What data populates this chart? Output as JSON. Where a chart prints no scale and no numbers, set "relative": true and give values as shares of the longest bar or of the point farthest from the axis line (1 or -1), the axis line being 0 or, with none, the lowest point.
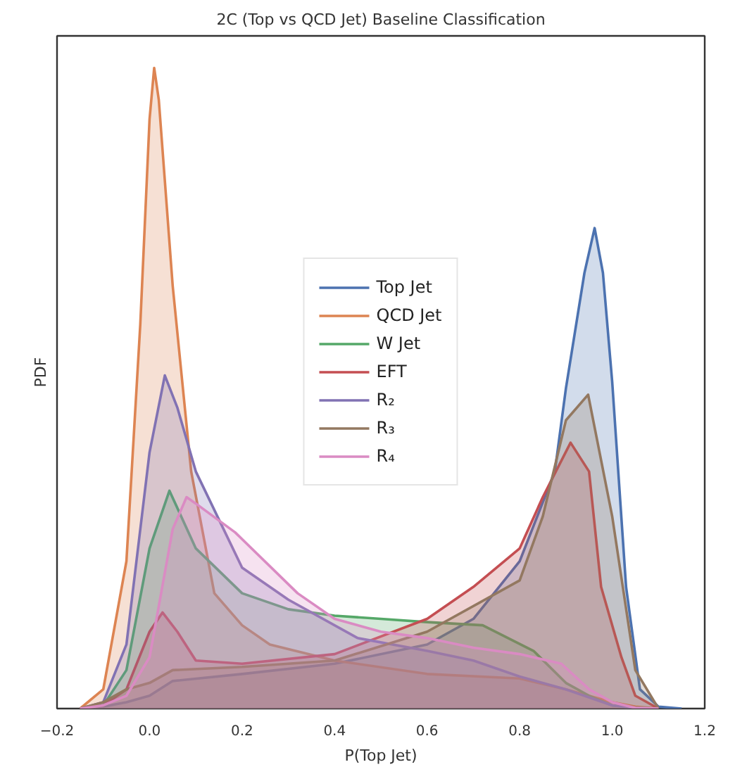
{
  "chart_data": {
    "type": "area",
    "title": "2C (Top vs QCD Jet) Baseline Classification",
    "xlabel": "P(Top Jet)",
    "ylabel": "PDF",
    "relative": true,
    "xlim": [
      -0.2,
      1.2
    ],
    "xticks": [
      {
        "value": -0.2,
        "label": "−0.2"
      },
      {
        "value": 0,
        "label": "0.0"
      },
      {
        "value": 0.2,
        "label": "0.2"
      },
      {
        "value": 0.4,
        "label": "0.4"
      },
      {
        "value": 0.6,
        "label": "0.6"
      },
      {
        "value": 0.8,
        "label": "0.8"
      },
      {
        "value": 1.0,
        "label": "1.0"
      },
      {
        "value": 1.2,
        "label": "1.2"
      }
    ],
    "grid": false,
    "legend": "center",
    "series": [
      {
        "name": "Top Jet",
        "color": "#4c72b0",
        "x": [
          -0.15,
          -0.1,
          -0.05,
          0,
          0.05,
          0.2,
          0.4,
          0.6,
          0.7,
          0.8,
          0.876,
          0.9,
          0.94,
          0.962,
          0.98,
          1.0,
          1.03,
          1.06,
          1.1,
          1.15
        ],
        "values": [
          0,
          0.003,
          0.01,
          0.02,
          0.043,
          0.054,
          0.07,
          0.1,
          0.14,
          0.23,
          0.37,
          0.5,
          0.68,
          0.75,
          0.68,
          0.51,
          0.19,
          0.03,
          0.003,
          0
        ]
      },
      {
        "name": "QCD Jet",
        "color": "#dd8452",
        "x": [
          -0.15,
          -0.1,
          -0.05,
          -0.02,
          0,
          0.01,
          0.02,
          0.05,
          0.09,
          0.14,
          0.2,
          0.26,
          0.4,
          0.6,
          0.8,
          0.9,
          1.0,
          1.05,
          1.1
        ],
        "values": [
          0,
          0.03,
          0.23,
          0.6,
          0.92,
          1.0,
          0.95,
          0.66,
          0.37,
          0.18,
          0.13,
          0.1,
          0.075,
          0.054,
          0.047,
          0.03,
          0.01,
          0.003,
          0
        ]
      },
      {
        "name": "W Jet",
        "color": "#55a868",
        "x": [
          -0.15,
          -0.1,
          -0.05,
          0,
          0.043,
          0.1,
          0.2,
          0.3,
          0.4,
          0.5,
          0.6,
          0.72,
          0.83,
          0.9,
          0.95,
          1.0,
          1.05,
          1.1
        ],
        "values": [
          0,
          0.005,
          0.06,
          0.25,
          0.34,
          0.25,
          0.18,
          0.155,
          0.145,
          0.14,
          0.135,
          0.13,
          0.09,
          0.04,
          0.02,
          0.005,
          0.001,
          0
        ]
      },
      {
        "name": "EFT",
        "color": "#c44e52",
        "x": [
          -0.15,
          -0.1,
          -0.05,
          0,
          0.028,
          0.06,
          0.1,
          0.2,
          0.4,
          0.6,
          0.7,
          0.8,
          0.85,
          0.91,
          0.95,
          0.976,
          1.02,
          1.05,
          1.1
        ],
        "values": [
          0,
          0.005,
          0.03,
          0.12,
          0.15,
          0.12,
          0.075,
          0.07,
          0.085,
          0.14,
          0.19,
          0.25,
          0.33,
          0.415,
          0.37,
          0.19,
          0.08,
          0.02,
          0
        ]
      },
      {
        "name": "R₂",
        "color": "#8172b3",
        "x": [
          -0.15,
          -0.1,
          -0.05,
          0,
          0.033,
          0.06,
          0.1,
          0.2,
          0.3,
          0.45,
          0.6,
          0.7,
          0.8,
          0.9,
          1.0,
          1.05,
          1.1
        ],
        "values": [
          0,
          0.01,
          0.1,
          0.4,
          0.52,
          0.47,
          0.37,
          0.22,
          0.17,
          0.11,
          0.09,
          0.075,
          0.05,
          0.03,
          0.005,
          0.001,
          0
        ]
      },
      {
        "name": "R₃",
        "color": "#937860",
        "x": [
          -0.15,
          -0.1,
          -0.05,
          0,
          0.05,
          0.2,
          0.4,
          0.6,
          0.8,
          0.85,
          0.9,
          0.948,
          1.0,
          1.05,
          1.1
        ],
        "values": [
          0,
          0.01,
          0.03,
          0.04,
          0.06,
          0.065,
          0.075,
          0.12,
          0.2,
          0.3,
          0.45,
          0.49,
          0.3,
          0.06,
          0
        ]
      },
      {
        "name": "R₄",
        "color": "#da8bc3",
        "x": [
          -0.15,
          -0.1,
          -0.05,
          0,
          0.05,
          0.08,
          0.1,
          0.185,
          0.32,
          0.4,
          0.5,
          0.6,
          0.7,
          0.8,
          0.89,
          0.95,
          1.0,
          1.05,
          1.1
        ],
        "values": [
          0,
          0.005,
          0.02,
          0.08,
          0.28,
          0.33,
          0.32,
          0.275,
          0.18,
          0.14,
          0.12,
          0.11,
          0.095,
          0.085,
          0.07,
          0.03,
          0.01,
          0.001,
          0
        ]
      }
    ]
  }
}
